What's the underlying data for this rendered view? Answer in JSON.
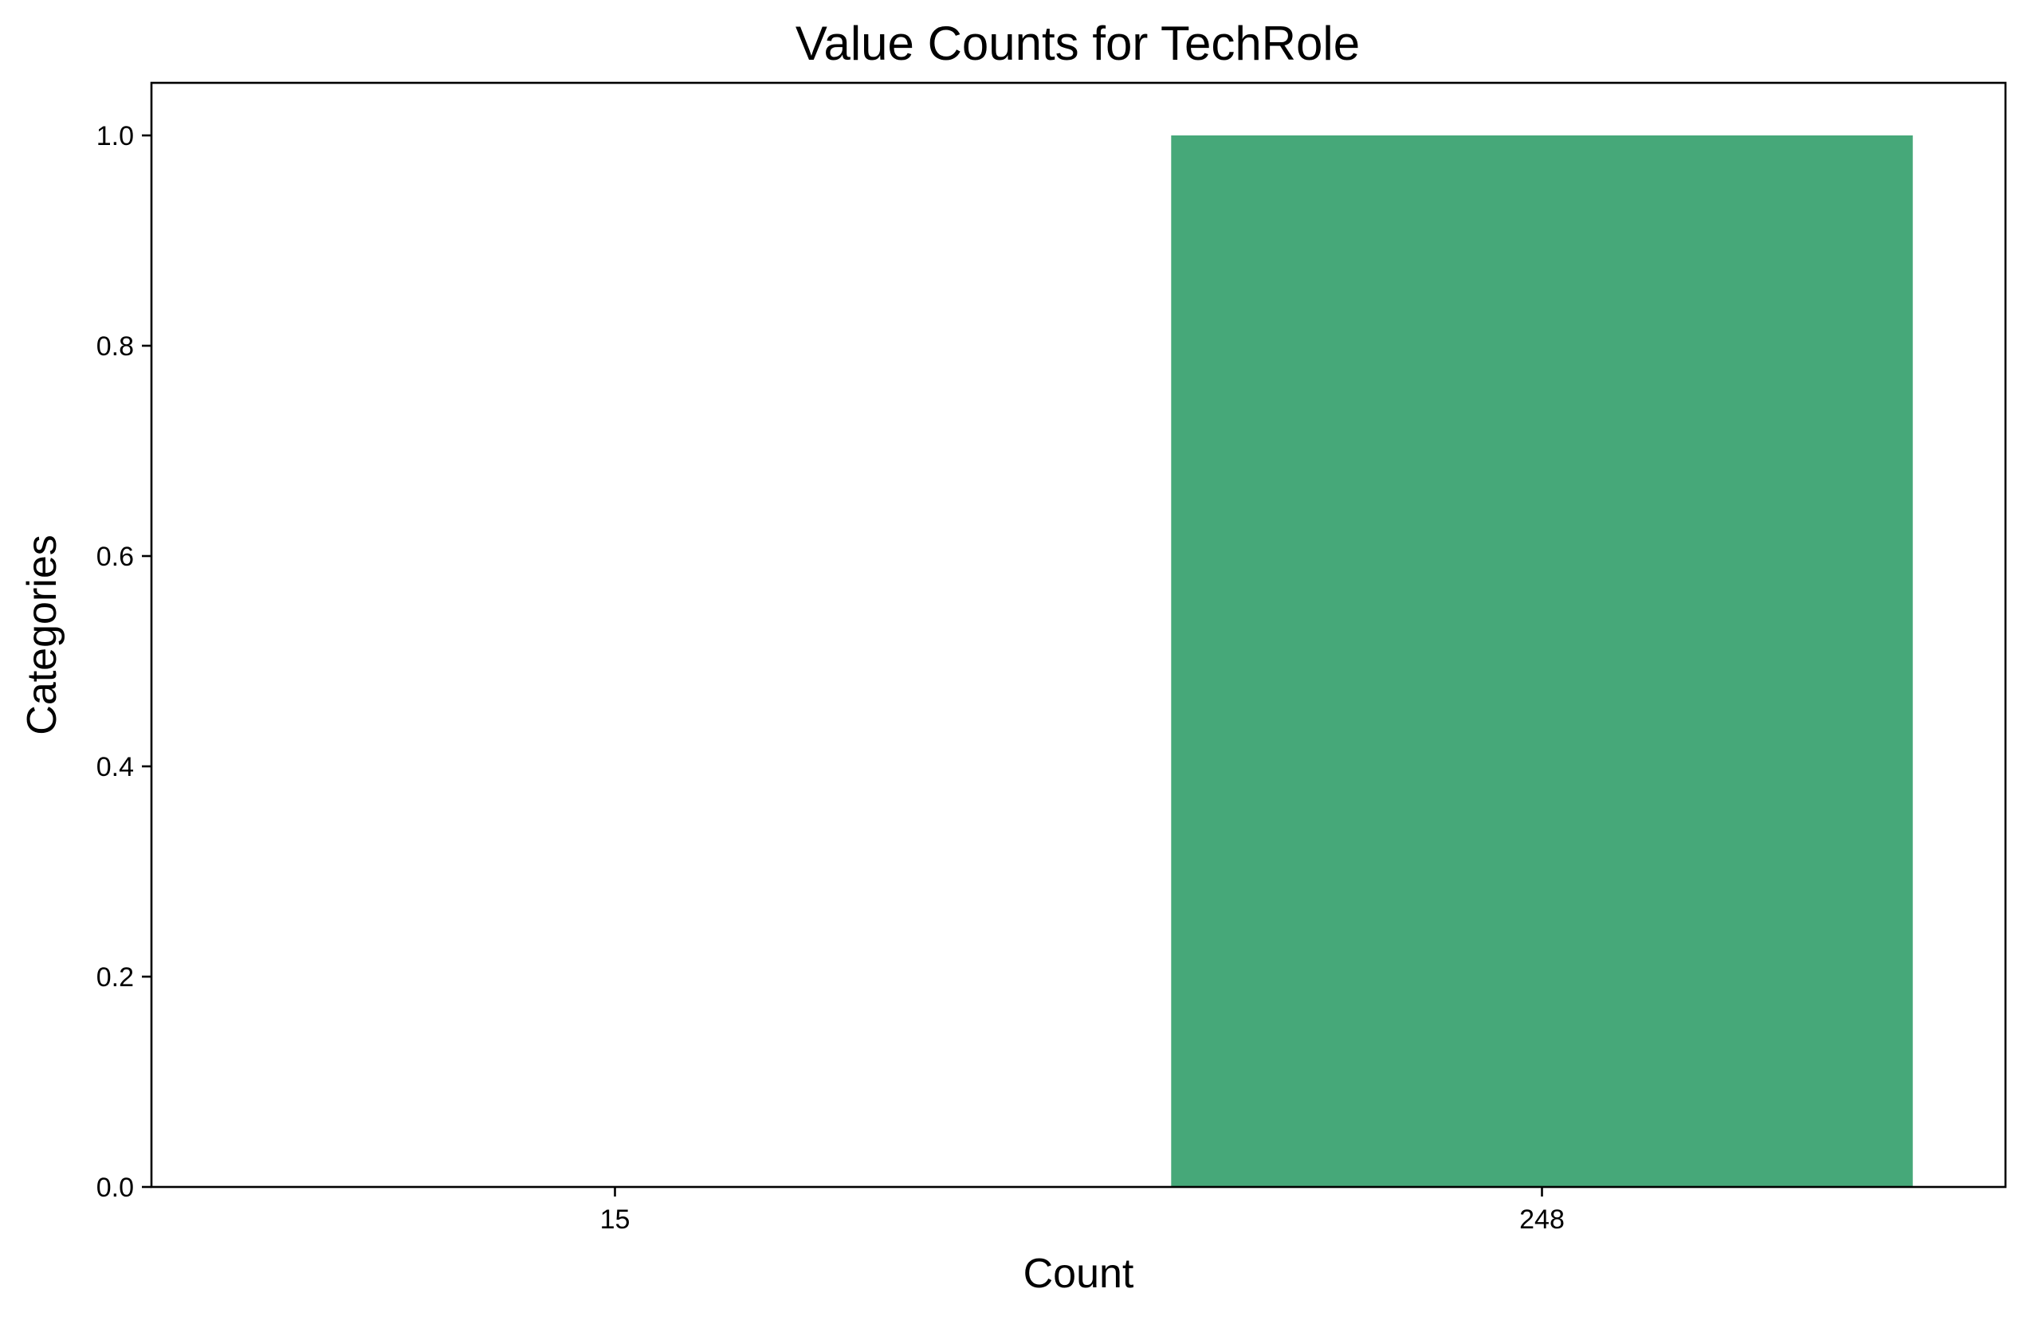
{
  "chart_data": {
    "type": "bar",
    "title": "Value Counts for TechRole",
    "xlabel": "Count",
    "ylabel": "Categories",
    "categories": [
      "15",
      "248"
    ],
    "values": [
      0,
      1
    ],
    "ylim": [
      0,
      1.05
    ],
    "yticks": [
      0.0,
      0.2,
      0.4,
      0.6,
      0.8,
      1.0
    ],
    "ytick_labels": [
      "0.0",
      "0.2",
      "0.4",
      "0.6",
      "0.8",
      "1.0"
    ],
    "bar_color": "#46a879",
    "grid": false,
    "legend": "none"
  }
}
